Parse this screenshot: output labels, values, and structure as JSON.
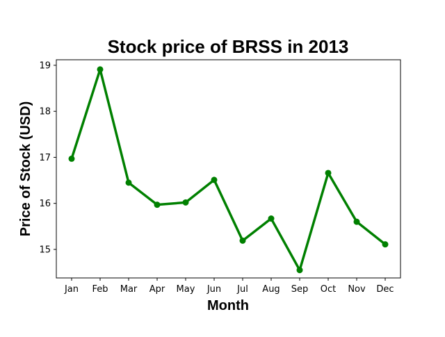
{
  "chart_data": {
    "type": "line",
    "title": "Stock price of BRSS in 2013",
    "xlabel": "Month",
    "ylabel": "Price of Stock (USD)",
    "categories": [
      "Jan",
      "Feb",
      "Mar",
      "Apr",
      "May",
      "Jun",
      "Jul",
      "Aug",
      "Sep",
      "Oct",
      "Nov",
      "Dec"
    ],
    "series": [
      {
        "values": [
          16.97,
          18.91,
          16.45,
          15.97,
          16.02,
          16.51,
          15.19,
          15.67,
          14.55,
          16.66,
          15.6,
          15.11
        ],
        "color": "#008000",
        "marker": "circle"
      }
    ],
    "ylim": [
      14.38,
      19.12
    ],
    "yticks": [
      15,
      16,
      17,
      18,
      19
    ],
    "grid": false,
    "legend": "none"
  }
}
